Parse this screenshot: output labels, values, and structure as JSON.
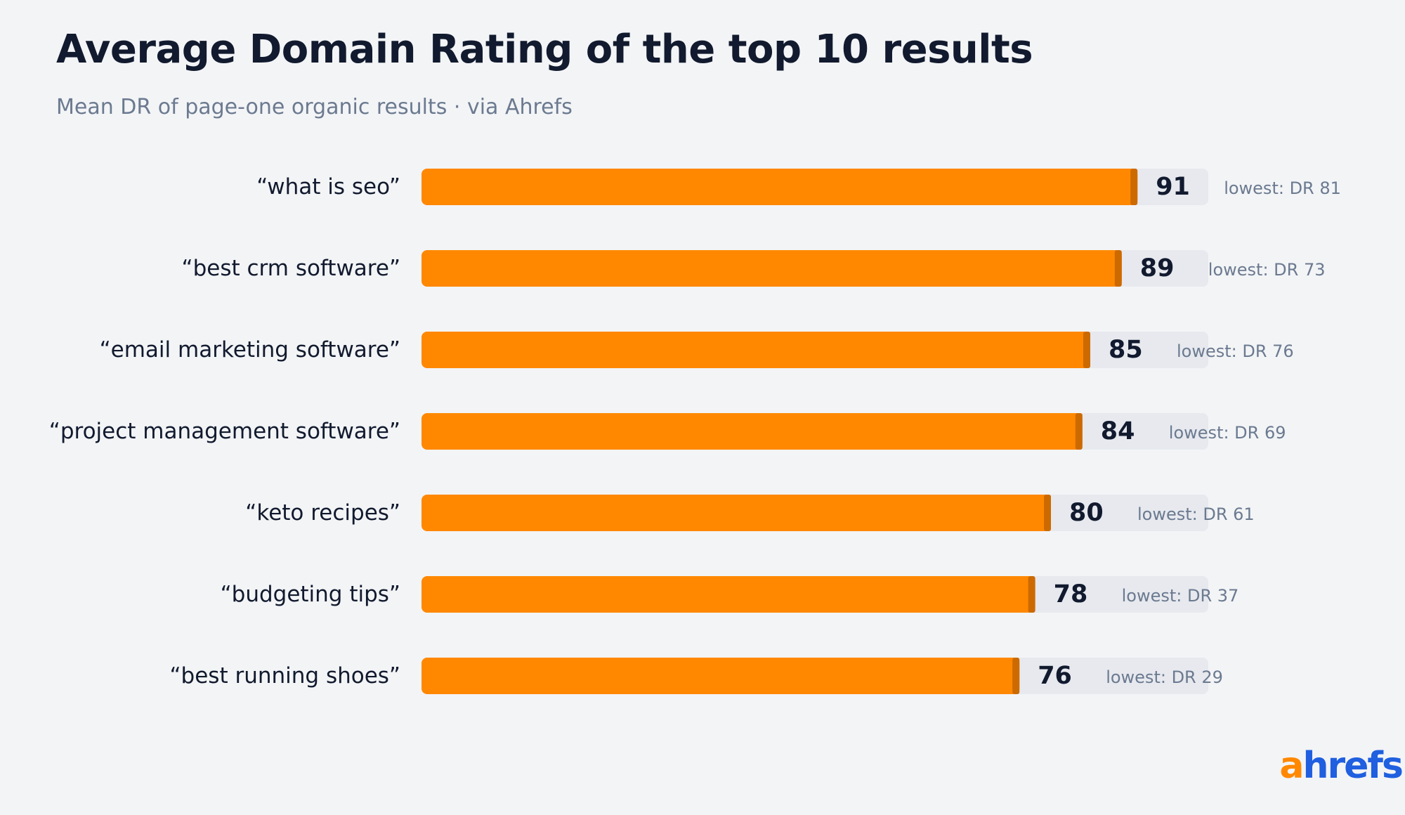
{
  "header": {
    "title": "Average Domain Rating of the top 10 results",
    "subtitle": "Mean DR of page-one organic results · via Ahrefs"
  },
  "logo": {
    "first": "a",
    "rest": "hrefs"
  },
  "colors": {
    "background": "#f3f4f6",
    "bar": "#ff8800",
    "bar_end_cap": "#cc6a00",
    "track": "#e7e9ee",
    "text_primary": "#111a2e",
    "text_muted": "#6b7a90",
    "logo_a": "#ff8800",
    "logo_rest": "#1f5fe0"
  },
  "chart_data": {
    "type": "bar",
    "orientation": "horizontal",
    "title": "Average Domain Rating of the top 10 results",
    "subtitle": "Mean DR of page-one organic results · via Ahrefs",
    "xlim": [
      0,
      100
    ],
    "grid": false,
    "legend": "none",
    "categories": [
      "“what is seo”",
      "“best crm software”",
      "“email marketing software”",
      "“project management software”",
      "“keto recipes”",
      "“budgeting tips”",
      "“best running shoes”"
    ],
    "values": [
      91,
      89,
      85,
      84,
      80,
      78,
      76
    ],
    "annotations": [
      "lowest: DR 81",
      "lowest: DR 73",
      "lowest: DR 76",
      "lowest: DR 69",
      "lowest: DR 61",
      "lowest: DR 37",
      "lowest: DR 29"
    ]
  }
}
